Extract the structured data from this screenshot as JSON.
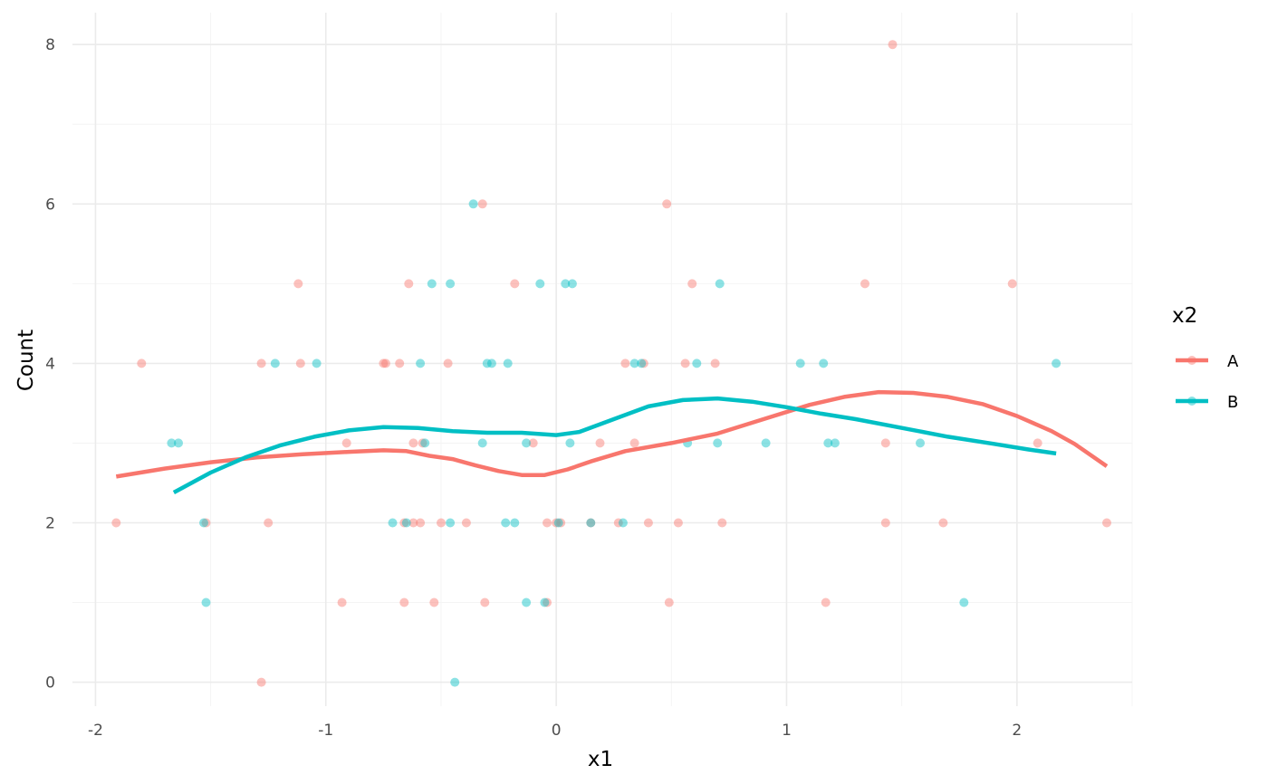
{
  "chart_data": {
    "type": "scatter",
    "xlabel": "x1",
    "ylabel": "Count",
    "xlim": [
      -2.1,
      2.5
    ],
    "ylim": [
      -0.3,
      8.4
    ],
    "x_ticks": [
      -2,
      -1,
      0,
      1,
      2
    ],
    "x_tick_labels": [
      "-2",
      "-1",
      "0",
      "1",
      "2"
    ],
    "y_ticks": [
      0,
      2,
      4,
      6,
      8
    ],
    "y_tick_labels": [
      "0",
      "2",
      "4",
      "6",
      "8"
    ],
    "grid": true,
    "legend": {
      "title": "x2",
      "position": "right"
    },
    "series": [
      {
        "name": "A",
        "color": "#F8766D",
        "points": [
          [
            1.46,
            8
          ],
          [
            -0.32,
            6
          ],
          [
            0.48,
            6
          ],
          [
            -1.12,
            5
          ],
          [
            -0.64,
            5
          ],
          [
            -0.18,
            5
          ],
          [
            0.59,
            5
          ],
          [
            1.34,
            5
          ],
          [
            1.98,
            5
          ],
          [
            -1.8,
            4
          ],
          [
            -1.28,
            4
          ],
          [
            -1.11,
            4
          ],
          [
            -0.75,
            4
          ],
          [
            -0.74,
            4
          ],
          [
            -0.68,
            4
          ],
          [
            -0.47,
            4
          ],
          [
            0.3,
            4
          ],
          [
            0.38,
            4
          ],
          [
            0.56,
            4
          ],
          [
            0.69,
            4
          ],
          [
            -0.91,
            3
          ],
          [
            -0.62,
            3
          ],
          [
            -0.58,
            3
          ],
          [
            -0.1,
            3
          ],
          [
            0.19,
            3
          ],
          [
            0.34,
            3
          ],
          [
            1.43,
            3
          ],
          [
            2.09,
            3
          ],
          [
            -1.91,
            2
          ],
          [
            -1.52,
            2
          ],
          [
            -1.25,
            2
          ],
          [
            -0.66,
            2
          ],
          [
            -0.62,
            2
          ],
          [
            -0.59,
            2
          ],
          [
            -0.5,
            2
          ],
          [
            -0.39,
            2
          ],
          [
            -0.04,
            2
          ],
          [
            0.0,
            2
          ],
          [
            0.02,
            2
          ],
          [
            0.15,
            2
          ],
          [
            0.27,
            2
          ],
          [
            0.4,
            2
          ],
          [
            0.53,
            2
          ],
          [
            0.72,
            2
          ],
          [
            1.43,
            2
          ],
          [
            1.68,
            2
          ],
          [
            2.39,
            2
          ],
          [
            -0.93,
            1
          ],
          [
            -0.66,
            1
          ],
          [
            -0.53,
            1
          ],
          [
            -0.31,
            1
          ],
          [
            -0.04,
            1
          ],
          [
            0.49,
            1
          ],
          [
            1.17,
            1
          ],
          [
            -1.28,
            0
          ]
        ],
        "smooth": [
          [
            -1.91,
            2.58
          ],
          [
            -1.7,
            2.68
          ],
          [
            -1.5,
            2.76
          ],
          [
            -1.3,
            2.82
          ],
          [
            -1.1,
            2.86
          ],
          [
            -0.9,
            2.89
          ],
          [
            -0.75,
            2.91
          ],
          [
            -0.65,
            2.9
          ],
          [
            -0.55,
            2.84
          ],
          [
            -0.45,
            2.8
          ],
          [
            -0.35,
            2.72
          ],
          [
            -0.25,
            2.65
          ],
          [
            -0.15,
            2.6
          ],
          [
            -0.05,
            2.6
          ],
          [
            0.05,
            2.67
          ],
          [
            0.15,
            2.77
          ],
          [
            0.3,
            2.9
          ],
          [
            0.5,
            3.0
          ],
          [
            0.7,
            3.12
          ],
          [
            0.9,
            3.3
          ],
          [
            1.1,
            3.48
          ],
          [
            1.25,
            3.58
          ],
          [
            1.4,
            3.64
          ],
          [
            1.55,
            3.63
          ],
          [
            1.7,
            3.58
          ],
          [
            1.85,
            3.49
          ],
          [
            2.0,
            3.34
          ],
          [
            2.15,
            3.15
          ],
          [
            2.25,
            2.99
          ],
          [
            2.39,
            2.71
          ]
        ]
      },
      {
        "name": "B",
        "color": "#00BFC4",
        "points": [
          [
            -0.36,
            6
          ],
          [
            -0.54,
            5
          ],
          [
            -0.46,
            5
          ],
          [
            -0.07,
            5
          ],
          [
            0.04,
            5
          ],
          [
            0.07,
            5
          ],
          [
            0.71,
            5
          ],
          [
            -1.22,
            4
          ],
          [
            -1.04,
            4
          ],
          [
            -0.59,
            4
          ],
          [
            -0.3,
            4
          ],
          [
            -0.28,
            4
          ],
          [
            -0.21,
            4
          ],
          [
            0.34,
            4
          ],
          [
            0.37,
            4
          ],
          [
            0.61,
            4
          ],
          [
            1.06,
            4
          ],
          [
            1.16,
            4
          ],
          [
            2.17,
            4
          ],
          [
            -1.67,
            3
          ],
          [
            -1.64,
            3
          ],
          [
            -0.57,
            3
          ],
          [
            -0.32,
            3
          ],
          [
            -0.13,
            3
          ],
          [
            0.06,
            3
          ],
          [
            0.57,
            3
          ],
          [
            0.7,
            3
          ],
          [
            0.91,
            3
          ],
          [
            1.18,
            3
          ],
          [
            1.21,
            3
          ],
          [
            1.58,
            3
          ],
          [
            -1.53,
            2
          ],
          [
            -0.71,
            2
          ],
          [
            -0.65,
            2
          ],
          [
            -0.46,
            2
          ],
          [
            -0.22,
            2
          ],
          [
            -0.18,
            2
          ],
          [
            0.01,
            2
          ],
          [
            0.15,
            2
          ],
          [
            0.29,
            2
          ],
          [
            -1.52,
            1
          ],
          [
            -0.13,
            1
          ],
          [
            -0.05,
            1
          ],
          [
            1.77,
            1
          ],
          [
            -0.44,
            0
          ]
        ],
        "smooth": [
          [
            -1.66,
            2.38
          ],
          [
            -1.5,
            2.63
          ],
          [
            -1.35,
            2.82
          ],
          [
            -1.2,
            2.97
          ],
          [
            -1.05,
            3.08
          ],
          [
            -0.9,
            3.16
          ],
          [
            -0.75,
            3.2
          ],
          [
            -0.6,
            3.19
          ],
          [
            -0.45,
            3.15
          ],
          [
            -0.3,
            3.13
          ],
          [
            -0.15,
            3.13
          ],
          [
            0.0,
            3.1
          ],
          [
            0.1,
            3.14
          ],
          [
            0.25,
            3.3
          ],
          [
            0.4,
            3.46
          ],
          [
            0.55,
            3.54
          ],
          [
            0.7,
            3.56
          ],
          [
            0.85,
            3.52
          ],
          [
            1.0,
            3.45
          ],
          [
            1.15,
            3.37
          ],
          [
            1.3,
            3.3
          ],
          [
            1.5,
            3.19
          ],
          [
            1.7,
            3.08
          ],
          [
            1.9,
            2.99
          ],
          [
            2.05,
            2.92
          ],
          [
            2.17,
            2.87
          ]
        ]
      }
    ]
  }
}
